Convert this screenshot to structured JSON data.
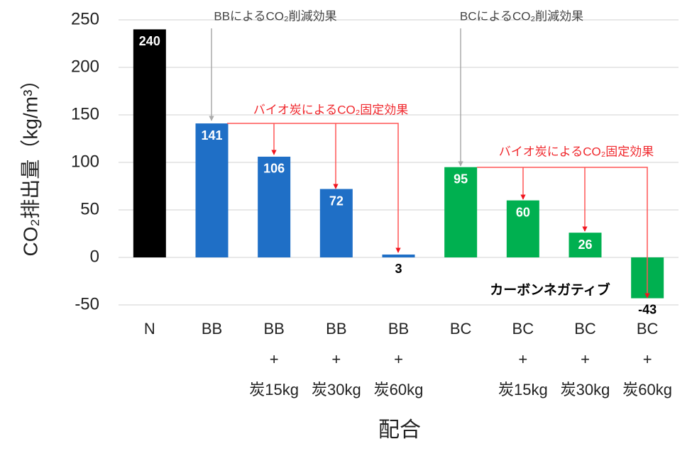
{
  "chart_data": {
    "type": "bar",
    "y_label": "CO₂排出量（kg/m³）",
    "x_label": "配合",
    "categories": [
      [
        "N"
      ],
      [
        "BB"
      ],
      [
        "BB",
        "+",
        "炭15kg"
      ],
      [
        "BB",
        "+",
        "炭30kg"
      ],
      [
        "BB",
        "+",
        "炭60kg"
      ],
      [
        "BC"
      ],
      [
        "BC",
        "+",
        "炭15kg"
      ],
      [
        "BC",
        "+",
        "炭30kg"
      ],
      [
        "BC",
        "+",
        "炭60kg"
      ]
    ],
    "values": [
      240,
      141,
      106,
      72,
      3,
      95,
      60,
      26,
      -43
    ],
    "colors": [
      "#000000",
      "#1f6fc6",
      "#1f6fc6",
      "#1f6fc6",
      "#1f6fc6",
      "#00b050",
      "#00b050",
      "#00b050",
      "#00b050"
    ],
    "ylim": [
      -50,
      250
    ],
    "yticks": [
      -50,
      0,
      50,
      100,
      150,
      200,
      250
    ],
    "grid": true,
    "annotations": [
      "BBによるCO₂削減効果",
      "BCによるCO₂削減効果",
      "バイオ炭によるCO₂固定効果",
      "バイオ炭によるCO₂固定効果",
      "カーボンネガティブ"
    ]
  }
}
